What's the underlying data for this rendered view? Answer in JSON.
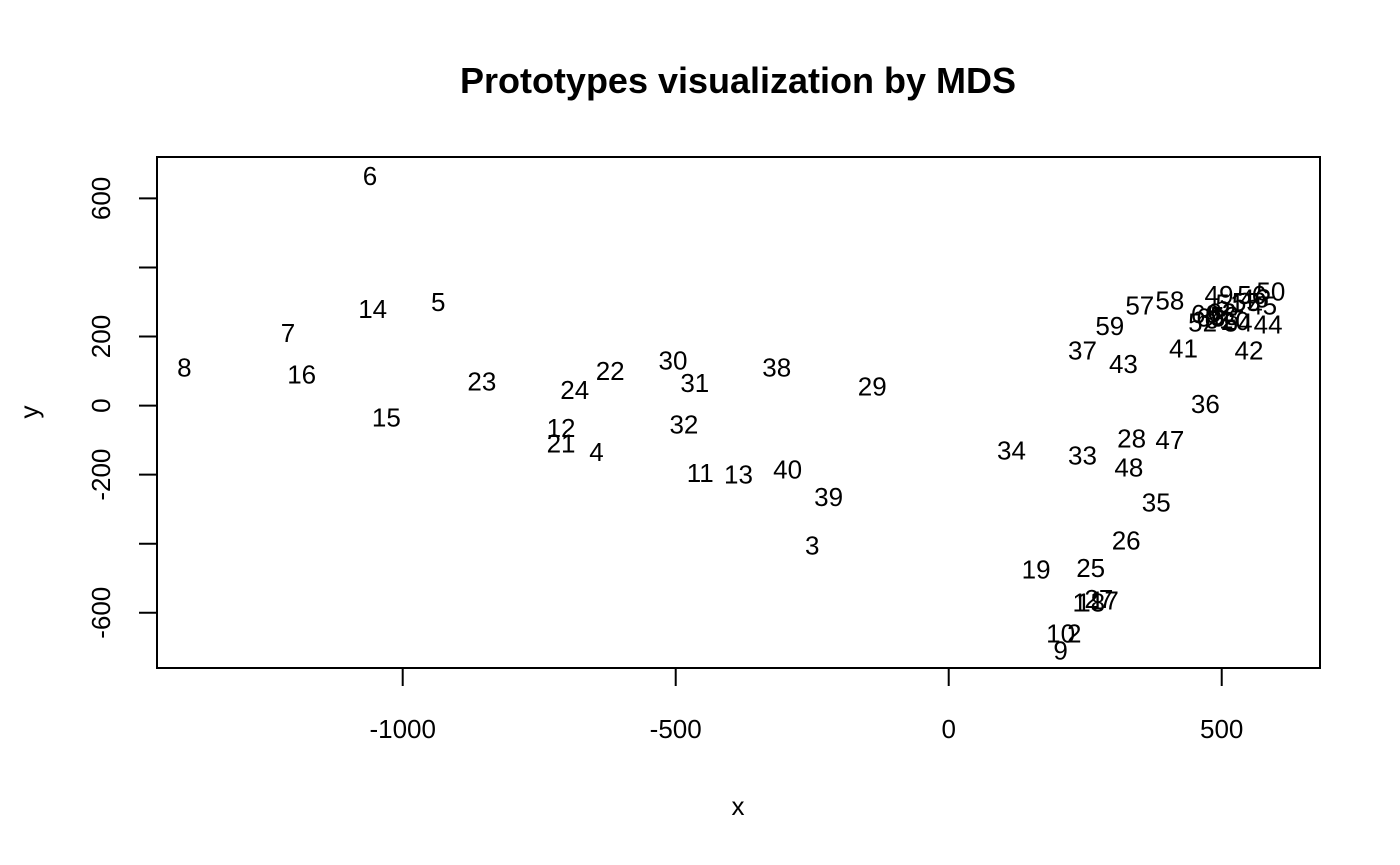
{
  "chart_data": {
    "type": "scatter",
    "title": "Prototypes visualization by MDS",
    "xlabel": "x",
    "ylabel": "y",
    "xlim": [
      -1450,
      680
    ],
    "ylim": [
      -760,
      720
    ],
    "xticks": [
      -1000,
      -500,
      0,
      500
    ],
    "yticks": [
      -600,
      -400,
      -200,
      0,
      200,
      400,
      600
    ],
    "yticklabels": [
      "-600",
      "",
      "-200",
      "0",
      "200",
      "",
      "600"
    ],
    "xticklabels": [
      "-1000",
      "-500",
      "0",
      "500"
    ],
    "grid": false,
    "legend": "none",
    "marker": "point index labels",
    "points": [
      {
        "label": "1",
        "x": 240,
        "y": -570
      },
      {
        "label": "2",
        "x": 230,
        "y": -660
      },
      {
        "label": "3",
        "x": -250,
        "y": -405
      },
      {
        "label": "4",
        "x": -645,
        "y": -135
      },
      {
        "label": "5",
        "x": -935,
        "y": 300
      },
      {
        "label": "6",
        "x": -1060,
        "y": 665
      },
      {
        "label": "7",
        "x": -1210,
        "y": 210
      },
      {
        "label": "8",
        "x": -1400,
        "y": 110
      },
      {
        "label": "9",
        "x": 205,
        "y": -710
      },
      {
        "label": "10",
        "x": 205,
        "y": -660
      },
      {
        "label": "11",
        "x": -455,
        "y": -195
      },
      {
        "label": "12",
        "x": -710,
        "y": -65
      },
      {
        "label": "13",
        "x": -385,
        "y": -200
      },
      {
        "label": "14",
        "x": -1055,
        "y": 280
      },
      {
        "label": "15",
        "x": -1030,
        "y": -35
      },
      {
        "label": "16",
        "x": -1185,
        "y": 90
      },
      {
        "label": "17",
        "x": 285,
        "y": -565
      },
      {
        "label": "18",
        "x": 260,
        "y": -570
      },
      {
        "label": "19",
        "x": 160,
        "y": -475
      },
      {
        "label": "20",
        "x": 525,
        "y": 245
      },
      {
        "label": "21",
        "x": -710,
        "y": -110
      },
      {
        "label": "22",
        "x": -620,
        "y": 100
      },
      {
        "label": "23",
        "x": -855,
        "y": 70
      },
      {
        "label": "24",
        "x": -685,
        "y": 45
      },
      {
        "label": "25",
        "x": 260,
        "y": -470
      },
      {
        "label": "26",
        "x": 325,
        "y": -390
      },
      {
        "label": "27",
        "x": 275,
        "y": -560
      },
      {
        "label": "28",
        "x": 335,
        "y": -95
      },
      {
        "label": "29",
        "x": -140,
        "y": 55
      },
      {
        "label": "30",
        "x": -505,
        "y": 130
      },
      {
        "label": "31",
        "x": -465,
        "y": 65
      },
      {
        "label": "32",
        "x": -485,
        "y": -55
      },
      {
        "label": "33",
        "x": 245,
        "y": -145
      },
      {
        "label": "34",
        "x": 115,
        "y": -130
      },
      {
        "label": "35",
        "x": 380,
        "y": -280
      },
      {
        "label": "36",
        "x": 470,
        "y": 5
      },
      {
        "label": "37",
        "x": 245,
        "y": 160
      },
      {
        "label": "38",
        "x": -315,
        "y": 110
      },
      {
        "label": "39",
        "x": -220,
        "y": -265
      },
      {
        "label": "40",
        "x": -295,
        "y": -185
      },
      {
        "label": "41",
        "x": 430,
        "y": 165
      },
      {
        "label": "42",
        "x": 550,
        "y": 160
      },
      {
        "label": "43",
        "x": 320,
        "y": 120
      },
      {
        "label": "44",
        "x": 585,
        "y": 235
      },
      {
        "label": "45",
        "x": 575,
        "y": 290
      },
      {
        "label": "46",
        "x": 560,
        "y": 310
      },
      {
        "label": "47",
        "x": 405,
        "y": -100
      },
      {
        "label": "48",
        "x": 330,
        "y": -180
      },
      {
        "label": "49",
        "x": 495,
        "y": 320
      },
      {
        "label": "50",
        "x": 590,
        "y": 330
      },
      {
        "label": "51",
        "x": 515,
        "y": 295
      },
      {
        "label": "52",
        "x": 465,
        "y": 240
      },
      {
        "label": "53",
        "x": 505,
        "y": 260
      },
      {
        "label": "54",
        "x": 530,
        "y": 240
      },
      {
        "label": "55",
        "x": 545,
        "y": 300
      },
      {
        "label": "56",
        "x": 555,
        "y": 320
      },
      {
        "label": "57",
        "x": 350,
        "y": 290
      },
      {
        "label": "58",
        "x": 405,
        "y": 305
      },
      {
        "label": "59",
        "x": 295,
        "y": 230
      },
      {
        "label": "60",
        "x": 470,
        "y": 265
      },
      {
        "label": "61",
        "x": 495,
        "y": 250
      },
      {
        "label": "62",
        "x": 500,
        "y": 270
      },
      {
        "label": "63",
        "x": 480,
        "y": 255
      }
    ]
  }
}
